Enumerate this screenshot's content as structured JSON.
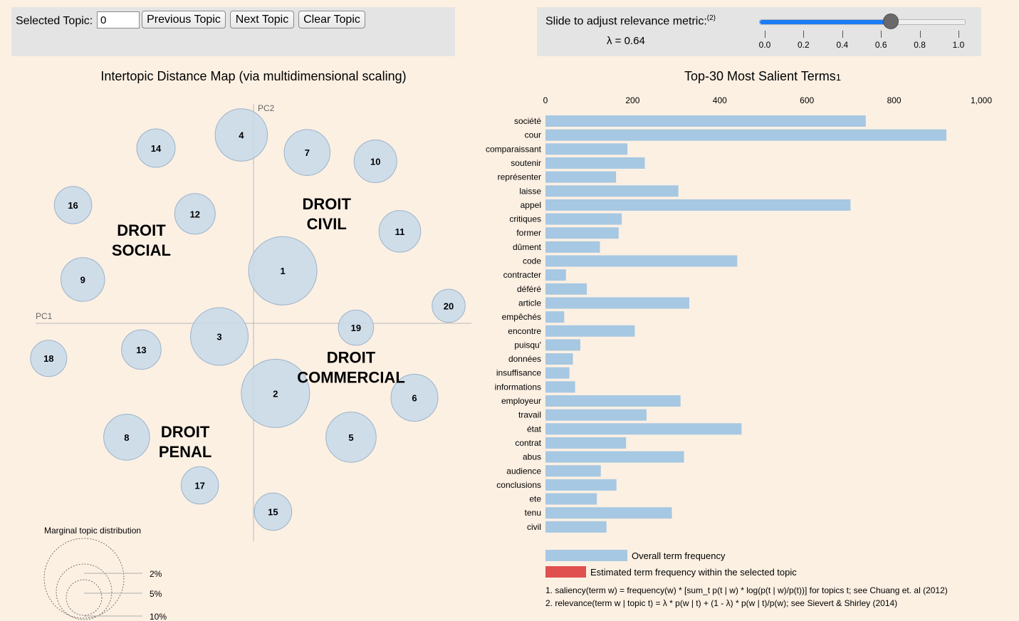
{
  "controls": {
    "selected_topic_label": "Selected Topic:",
    "selected_topic_value": "0",
    "prev_label": "Previous Topic",
    "next_label": "Next Topic",
    "clear_label": "Clear Topic"
  },
  "slider": {
    "label": "Slide to adjust relevance metric:",
    "footnote_ref": "(2)",
    "lambda_text": "λ = 0.64",
    "value": 0.64,
    "ticks": [
      "0.0",
      "0.2",
      "0.4",
      "0.6",
      "0.8",
      "1.0"
    ],
    "accent_color": "#1c7cf5"
  },
  "map": {
    "title": "Intertopic Distance Map (via multidimensional scaling)",
    "axis_pc1": "PC1",
    "axis_pc2": "PC2",
    "topics": [
      {
        "id": "1",
        "x": 0.6,
        "y": 1.2,
        "size": 6.4
      },
      {
        "id": "2",
        "x": 0.45,
        "y": -1.6,
        "size": 6.4
      },
      {
        "id": "3",
        "x": -0.7,
        "y": -0.3,
        "size": 5.4
      },
      {
        "id": "4",
        "x": -0.25,
        "y": 4.3,
        "size": 4.9
      },
      {
        "id": "5",
        "x": 2.0,
        "y": -2.6,
        "size": 4.7
      },
      {
        "id": "6",
        "x": 3.3,
        "y": -1.7,
        "size": 4.4
      },
      {
        "id": "7",
        "x": 1.1,
        "y": 3.9,
        "size": 4.3
      },
      {
        "id": "8",
        "x": -2.6,
        "y": -2.6,
        "size": 4.3
      },
      {
        "id": "9",
        "x": -3.5,
        "y": 1.0,
        "size": 4.1
      },
      {
        "id": "10",
        "x": 2.5,
        "y": 3.7,
        "size": 4.0
      },
      {
        "id": "11",
        "x": 3.0,
        "y": 2.1,
        "size": 3.9
      },
      {
        "id": "12",
        "x": -1.2,
        "y": 2.5,
        "size": 3.8
      },
      {
        "id": "13",
        "x": -2.3,
        "y": -0.6,
        "size": 3.7
      },
      {
        "id": "14",
        "x": -2.0,
        "y": 4.0,
        "size": 3.6
      },
      {
        "id": "15",
        "x": 0.4,
        "y": -4.3,
        "size": 3.5
      },
      {
        "id": "16",
        "x": -3.7,
        "y": 2.7,
        "size": 3.5
      },
      {
        "id": "17",
        "x": -1.1,
        "y": -3.7,
        "size": 3.5
      },
      {
        "id": "18",
        "x": -4.2,
        "y": -0.8,
        "size": 3.4
      },
      {
        "id": "19",
        "x": 2.1,
        "y": -0.1,
        "size": 3.3
      },
      {
        "id": "20",
        "x": 4.0,
        "y": 0.4,
        "size": 3.1
      }
    ],
    "annotations": [
      {
        "lines": [
          "DROIT",
          "CIVIL"
        ],
        "x": 1.5,
        "y": 2.6
      },
      {
        "lines": [
          "DROIT",
          "SOCIAL"
        ],
        "x": -2.3,
        "y": 2.0
      },
      {
        "lines": [
          "DROIT",
          "COMMERCIAL"
        ],
        "x": 2.0,
        "y": -0.9
      },
      {
        "lines": [
          "DROIT",
          "PENAL"
        ],
        "x": -1.4,
        "y": -2.6
      }
    ],
    "marginal": {
      "title": "Marginal topic distribution",
      "labels": [
        "2%",
        "5%",
        "10%"
      ]
    }
  },
  "chart_data": {
    "type": "bar",
    "title": "Top-30 Most Salient Terms",
    "title_sup": "1",
    "xlim": [
      0,
      1000
    ],
    "xticks": [
      "0",
      "200",
      "400",
      "600",
      "800",
      "1,000"
    ],
    "categories": [
      "société",
      "cour",
      "comparaissant",
      "soutenir",
      "représenter",
      "laisse",
      "appel",
      "critiques",
      "former",
      "dûment",
      "code",
      "contracter",
      "déféré",
      "article",
      "empêchés",
      "encontre",
      "puisqu'",
      "données",
      "insuffisance",
      "informations",
      "employeur",
      "travail",
      "état",
      "contrat",
      "abus",
      "audience",
      "conclusions",
      "ete",
      "tenu",
      "civil"
    ],
    "series": [
      {
        "name": "Overall term frequency",
        "color": "#a6c8e2",
        "values": [
          735,
          920,
          188,
          228,
          162,
          305,
          700,
          175,
          168,
          125,
          440,
          47,
          95,
          330,
          43,
          205,
          80,
          63,
          55,
          68,
          310,
          232,
          450,
          185,
          318,
          127,
          163,
          118,
          290,
          140
        ]
      }
    ],
    "legend": {
      "overall": "Overall term frequency",
      "estimated": "Estimated term frequency within the selected topic",
      "estimated_color": "#e0504e"
    },
    "footnotes": [
      "1. saliency(term w) = frequency(w) * [sum_t p(t | w) * log(p(t | w)/p(t))] for topics t; see Chuang et. al (2012)",
      "2. relevance(term w | topic t) = λ * p(w | t) + (1 - λ) * p(w | t)/p(w); see Sievert & Shirley (2014)"
    ]
  }
}
